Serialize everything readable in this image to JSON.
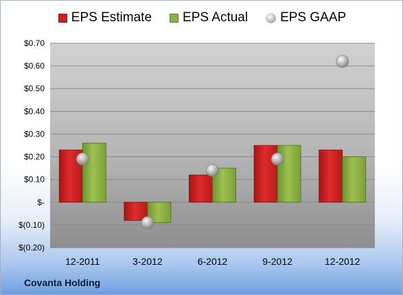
{
  "chart_data": {
    "type": "bar",
    "categories": [
      "12-2011",
      "3-2012",
      "6-2012",
      "9-2012",
      "12-2012"
    ],
    "series": [
      {
        "name": "EPS Estimate",
        "type": "bar",
        "values": [
          0.23,
          -0.08,
          0.12,
          0.25,
          0.23
        ],
        "color": "#cc1f1f"
      },
      {
        "name": "EPS Actual",
        "type": "bar",
        "values": [
          0.26,
          -0.09,
          0.15,
          0.25,
          0.2
        ],
        "color": "#8cb043"
      },
      {
        "name": "EPS GAAP",
        "type": "scatter",
        "values": [
          0.19,
          -0.09,
          0.14,
          0.19,
          0.62
        ],
        "color": "#a9a9a9"
      }
    ],
    "yticks": [
      0.7,
      0.6,
      0.5,
      0.4,
      0.3,
      0.2,
      0.1,
      0,
      -0.1,
      -0.2
    ],
    "ytick_labels": [
      "$0.70",
      "$0.60",
      "$0.50",
      "$0.40",
      "$0.30",
      "$0.20",
      "$0.10",
      "$-",
      "$(0.10)",
      "$(0.20)"
    ],
    "ylim": [
      -0.2,
      0.7
    ],
    "grid": true,
    "legend": "top"
  },
  "legend": {
    "estimate": "EPS Estimate",
    "actual": "EPS Actual",
    "gaap": "EPS GAAP"
  },
  "footer": {
    "company": "Covanta Holding"
  }
}
